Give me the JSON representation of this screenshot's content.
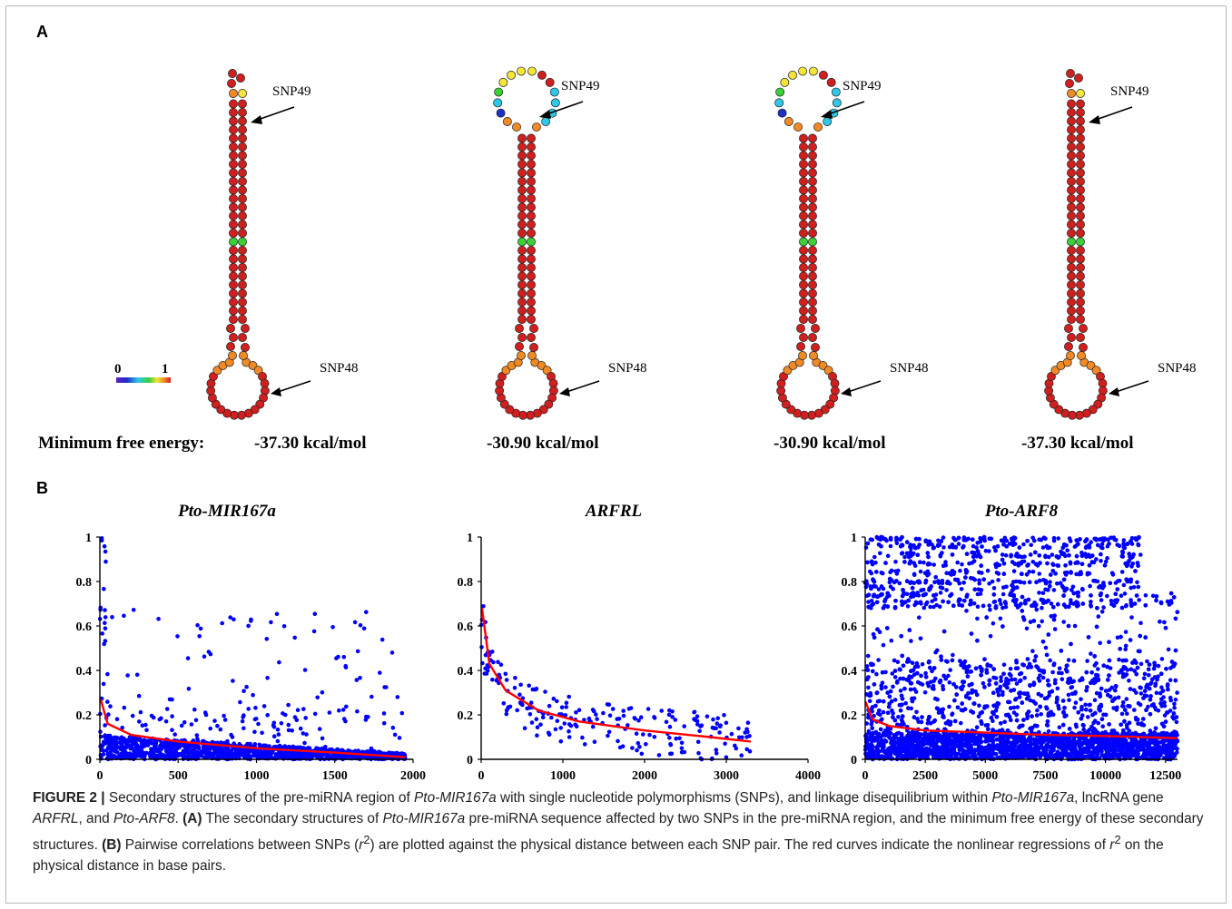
{
  "panel_a": {
    "label": "A",
    "mfe_prefix": "Minimum free energy:",
    "structures": [
      {
        "id": "s1",
        "mfe": "-37.30 kcal/mol",
        "loop": "small",
        "snp_top": "SNP49",
        "snp_bottom": "SNP48"
      },
      {
        "id": "s2",
        "mfe": "-30.90 kcal/mol",
        "loop": "large",
        "snp_top": "SNP49",
        "snp_bottom": "SNP48"
      },
      {
        "id": "s3",
        "mfe": "-30.90 kcal/mol",
        "loop": "large",
        "snp_top": "SNP49",
        "snp_bottom": "SNP48"
      },
      {
        "id": "s4",
        "mfe": "-37.30 kcal/mol",
        "loop": "small",
        "snp_top": "SNP49",
        "snp_bottom": "SNP48"
      }
    ],
    "legend": {
      "min_label": "0",
      "max_label": "1"
    },
    "colors": {
      "high": "#d01f1f",
      "orange": "#f08a25",
      "yellow": "#f3e53a",
      "green": "#3ccf36",
      "cyan": "#2ec9e8",
      "blue": "#1d2fc8"
    }
  },
  "panel_b": {
    "label": "B"
  },
  "chart_data": [
    {
      "type": "scatter",
      "title": "Pto-MIR167a",
      "xlim": [
        0,
        2000
      ],
      "ylim": [
        0,
        1
      ],
      "xticks": [
        "0",
        "500",
        "1000",
        "1500",
        "2000"
      ],
      "yticks": [
        "0",
        "0.2",
        "0.4",
        "0.6",
        "0.8",
        "1"
      ],
      "point_color": "#0000ff",
      "fit_color": "#ff0000",
      "fit_curve": {
        "x": [
          5,
          50,
          200,
          500,
          1000,
          1500,
          1950
        ],
        "y": [
          0.27,
          0.16,
          0.11,
          0.08,
          0.05,
          0.03,
          0.01
        ]
      },
      "points_summary": "dense cloud below r2=0.1 across 0-2000 bp, scattered points up to 1"
    },
    {
      "type": "scatter",
      "title": "ARFRL",
      "xlim": [
        0,
        4000
      ],
      "ylim": [
        0,
        1
      ],
      "xticks": [
        "0",
        "1000",
        "2000",
        "3000",
        "4000"
      ],
      "yticks": [
        "0",
        "0.2",
        "0.4",
        "0.6",
        "0.8",
        "1"
      ],
      "point_color": "#0000ff",
      "fit_color": "#ff0000",
      "fit_curve": {
        "x": [
          10,
          100,
          300,
          700,
          1200,
          2000,
          2800,
          3300
        ],
        "y": [
          0.68,
          0.43,
          0.31,
          0.22,
          0.17,
          0.13,
          0.1,
          0.08
        ]
      },
      "points_summary": "sparse points 0-3300 bp"
    },
    {
      "type": "scatter",
      "title": "Pto-ARF8",
      "xlim": [
        0,
        13000
      ],
      "ylim": [
        0,
        1
      ],
      "xticks": [
        "0",
        "2500",
        "5000",
        "7500",
        "10000",
        "12500"
      ],
      "yticks": [
        "0",
        "0.2",
        "0.4",
        "0.6",
        "0.8",
        "1"
      ],
      "point_color": "#0000ff",
      "fit_color": "#ff0000",
      "fit_curve": {
        "x": [
          10,
          300,
          1000,
          2500,
          5000,
          7500,
          10000,
          13000
        ],
        "y": [
          0.26,
          0.18,
          0.15,
          0.13,
          0.12,
          0.11,
          0.105,
          0.095
        ]
      },
      "points_summary": "very dense points filling most of the plot area"
    }
  ],
  "caption": {
    "figure_label": "FIGURE 2 |",
    "s1": " Secondary structures of the pre-miRNA region of ",
    "t1": "Pto-MIR167a",
    "s2": " with single nucleotide polymorphisms (SNPs), and linkage disequilibrium within ",
    "t2": "Pto-MIR167a",
    "s3": ", lncRNA gene ",
    "t3": "ARFRL",
    "s4": ", and ",
    "t4": "Pto-ARF8",
    "s5": ". ",
    "b1": "(A)",
    "s6": " The secondary structures of ",
    "t5": "Pto-MIR167a",
    "s7": " pre-miRNA sequence affected by two SNPs in the pre-miRNA region, and the minimum free energy of these secondary structures. ",
    "b2": "(B)",
    "s8": " Pairwise correlations between SNPs (",
    "r": "r",
    "sup": "2",
    "s9": ") are plotted against the physical distance between each SNP pair. The red curves indicate the nonlinear regressions of ",
    "r2": "r",
    "sup2": "2",
    "s10": " on the physical distance in base pairs."
  }
}
